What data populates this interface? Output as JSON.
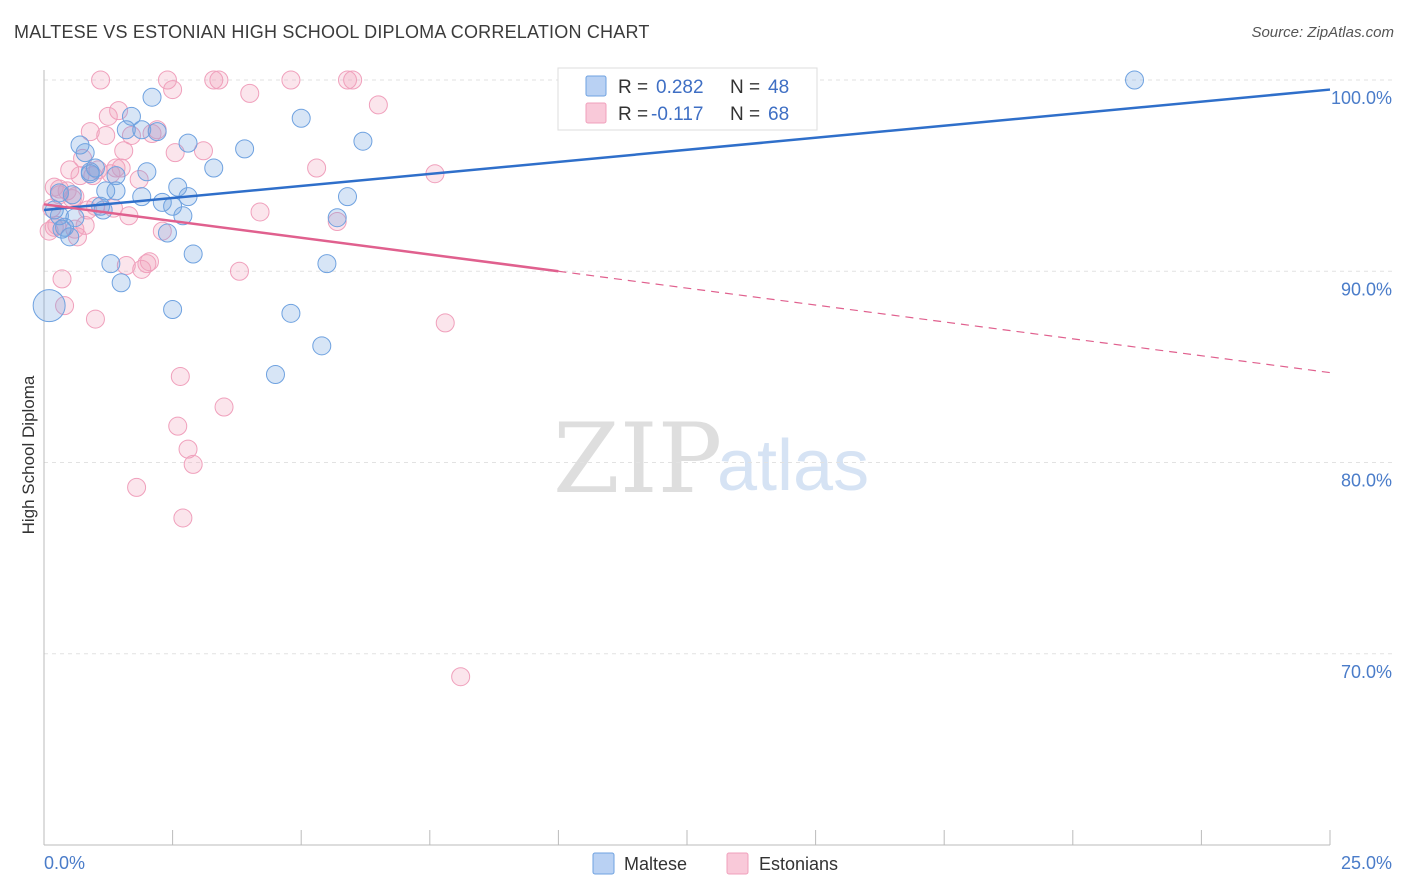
{
  "chart_data": {
    "type": "scatter",
    "title": "MALTESE VS ESTONIAN HIGH SCHOOL DIPLOMA CORRELATION CHART",
    "source": "Source: ZipAtlas.com",
    "xlabel": "",
    "ylabel": "High School Diploma",
    "xlim": [
      0,
      25
    ],
    "ylim": [
      60,
      100.5
    ],
    "x_tick_labels": [
      "0.0%",
      "25.0%"
    ],
    "y_ticks": [
      {
        "value": 100,
        "label": "100.0%"
      },
      {
        "value": 90,
        "label": "90.0%"
      },
      {
        "value": 80,
        "label": "80.0%"
      },
      {
        "value": 70,
        "label": "70.0%"
      }
    ],
    "watermark": {
      "left": "ZIP",
      "right": "atlas"
    },
    "legend": [
      {
        "r_label": "R = ",
        "r": "0.282",
        "n_label": "N = ",
        "n": "48"
      },
      {
        "r_label": "R = ",
        "r": "-0.117",
        "n_label": "N = ",
        "n": "68"
      }
    ],
    "series": [
      {
        "name": "Maltese",
        "color": "#6fa2e0",
        "line_color": "#2f6fca",
        "trend": {
          "x0": 0,
          "y0": 93.2,
          "x1": 25,
          "y1": 99.5
        },
        "points": [
          [
            0.1,
            88.2
          ],
          [
            0.2,
            93.2
          ],
          [
            0.3,
            94.1
          ],
          [
            0.4,
            92.3
          ],
          [
            0.5,
            91.8
          ],
          [
            0.6,
            92.8
          ],
          [
            0.7,
            96.6
          ],
          [
            0.8,
            96.2
          ],
          [
            0.9,
            95.1
          ],
          [
            1.0,
            95.4
          ],
          [
            1.1,
            93.4
          ],
          [
            1.2,
            94.2
          ],
          [
            1.3,
            90.4
          ],
          [
            1.4,
            95.0
          ],
          [
            1.4,
            94.2
          ],
          [
            1.5,
            89.4
          ],
          [
            1.6,
            97.4
          ],
          [
            1.7,
            98.1
          ],
          [
            1.9,
            93.9
          ],
          [
            1.9,
            97.4
          ],
          [
            2.0,
            95.2
          ],
          [
            2.1,
            99.1
          ],
          [
            2.2,
            97.3
          ],
          [
            2.3,
            93.6
          ],
          [
            2.4,
            92.0
          ],
          [
            2.5,
            88.0
          ],
          [
            2.5,
            93.4
          ],
          [
            2.6,
            94.4
          ],
          [
            2.7,
            92.9
          ],
          [
            2.8,
            93.9
          ],
          [
            2.8,
            96.7
          ],
          [
            2.9,
            90.9
          ],
          [
            3.3,
            95.4
          ],
          [
            3.9,
            96.4
          ],
          [
            4.5,
            84.6
          ],
          [
            4.8,
            87.8
          ],
          [
            5.0,
            98.0
          ],
          [
            5.4,
            86.1
          ],
          [
            5.5,
            90.4
          ],
          [
            5.7,
            92.8
          ],
          [
            5.9,
            93.9
          ],
          [
            6.2,
            96.8
          ],
          [
            21.2,
            100.0
          ],
          [
            0.35,
            92.2
          ],
          [
            0.55,
            94.0
          ],
          [
            0.9,
            95.2
          ],
          [
            1.15,
            93.2
          ],
          [
            0.3,
            92.9
          ]
        ]
      },
      {
        "name": "Estonians",
        "color": "#f0a0bc",
        "line_color": "#e0608e",
        "trend": {
          "x0": 0,
          "y0": 93.5,
          "x1": 10,
          "y1": 90.0,
          "dash_x1": 25,
          "dash_y1": 84.7
        },
        "points": [
          [
            0.1,
            92.1
          ],
          [
            0.2,
            94.4
          ],
          [
            0.25,
            92.4
          ],
          [
            0.3,
            94.0
          ],
          [
            0.35,
            89.6
          ],
          [
            0.4,
            88.2
          ],
          [
            0.45,
            94.2
          ],
          [
            0.5,
            95.3
          ],
          [
            0.55,
            93.8
          ],
          [
            0.6,
            92.2
          ],
          [
            0.65,
            91.8
          ],
          [
            0.7,
            95.0
          ],
          [
            0.75,
            95.9
          ],
          [
            0.8,
            92.4
          ],
          [
            0.85,
            93.2
          ],
          [
            0.9,
            97.3
          ],
          [
            0.95,
            95.0
          ],
          [
            1.0,
            87.5
          ],
          [
            1.05,
            95.3
          ],
          [
            1.1,
            100.0
          ],
          [
            1.2,
            97.1
          ],
          [
            1.25,
            98.1
          ],
          [
            1.3,
            95.1
          ],
          [
            1.4,
            95.4
          ],
          [
            1.45,
            98.4
          ],
          [
            1.5,
            95.4
          ],
          [
            1.55,
            96.3
          ],
          [
            1.6,
            90.3
          ],
          [
            1.65,
            92.9
          ],
          [
            1.7,
            97.1
          ],
          [
            1.8,
            78.7
          ],
          [
            1.85,
            94.8
          ],
          [
            1.9,
            90.1
          ],
          [
            2.0,
            90.4
          ],
          [
            2.05,
            90.5
          ],
          [
            2.1,
            97.2
          ],
          [
            2.2,
            97.4
          ],
          [
            2.3,
            92.1
          ],
          [
            2.4,
            100.0
          ],
          [
            2.5,
            99.5
          ],
          [
            2.55,
            96.2
          ],
          [
            2.6,
            81.9
          ],
          [
            2.65,
            84.5
          ],
          [
            2.7,
            77.1
          ],
          [
            2.8,
            80.7
          ],
          [
            2.9,
            79.9
          ],
          [
            3.1,
            96.3
          ],
          [
            3.3,
            100.0
          ],
          [
            3.4,
            100.0
          ],
          [
            3.5,
            82.9
          ],
          [
            3.8,
            90.0
          ],
          [
            4.0,
            99.3
          ],
          [
            4.2,
            93.1
          ],
          [
            4.8,
            100.0
          ],
          [
            5.3,
            95.4
          ],
          [
            5.7,
            92.6
          ],
          [
            5.9,
            100.0
          ],
          [
            6.0,
            100.0
          ],
          [
            6.5,
            98.7
          ],
          [
            7.6,
            95.1
          ],
          [
            7.8,
            87.3
          ],
          [
            8.1,
            68.8
          ],
          [
            0.15,
            93.3
          ],
          [
            0.3,
            94.3
          ],
          [
            0.6,
            93.9
          ],
          [
            1.35,
            93.3
          ],
          [
            0.2,
            92.3
          ],
          [
            1.0,
            93.4
          ]
        ]
      }
    ]
  }
}
